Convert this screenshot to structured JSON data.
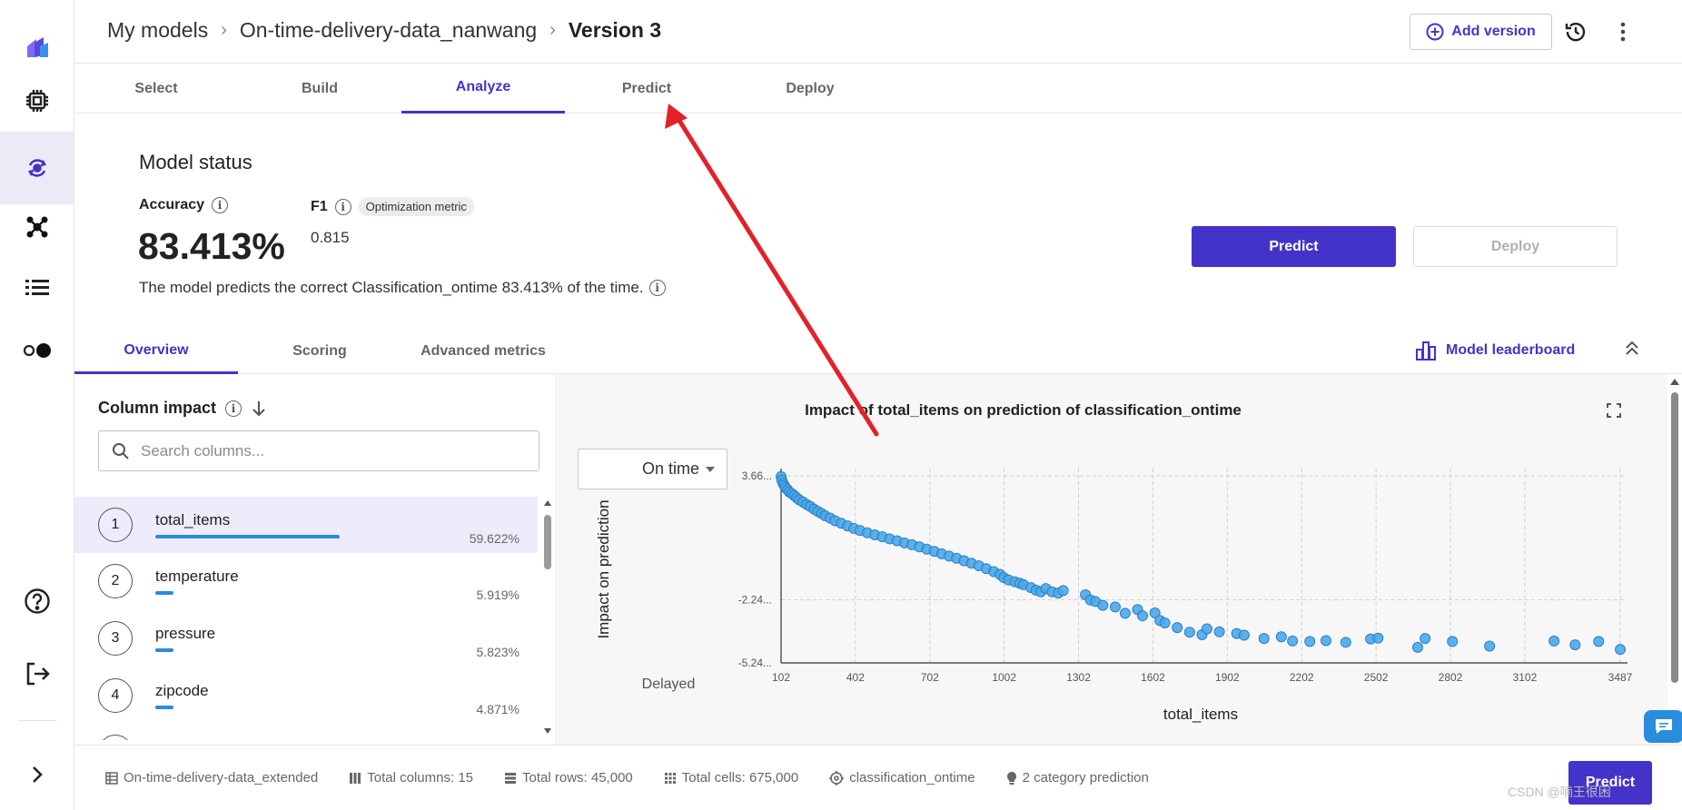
{
  "header": {
    "breadcrumbs": [
      "My models",
      "On-time-delivery-data_nanwang",
      "Version 3"
    ],
    "add_version_label": "Add version"
  },
  "main_tabs": [
    {
      "label": "Select"
    },
    {
      "label": "Build"
    },
    {
      "label": "Analyze",
      "active": true
    },
    {
      "label": "Predict"
    },
    {
      "label": "Deploy"
    }
  ],
  "status": {
    "title": "Model status",
    "accuracy_label": "Accuracy",
    "accuracy_value": "83.413%",
    "f1_label": "F1",
    "optimization_badge": "Optimization metric",
    "f1_value": "0.815",
    "description": "The model predicts the correct Classification_ontime 83.413% of the time.",
    "predict_button": "Predict",
    "deploy_button": "Deploy"
  },
  "sub_tabs": [
    {
      "label": "Overview",
      "active": true
    },
    {
      "label": "Scoring"
    },
    {
      "label": "Advanced metrics"
    }
  ],
  "leaderboard_label": "Model leaderboard",
  "column_impact": {
    "title": "Column impact",
    "search_placeholder": "Search columns...",
    "columns": [
      {
        "rank": "1",
        "name": "total_items",
        "percent": "59.622%",
        "share": 0.59622
      },
      {
        "rank": "2",
        "name": "temperature",
        "percent": "5.919%",
        "share": 0.05919
      },
      {
        "rank": "3",
        "name": "pressure",
        "percent": "5.823%",
        "share": 0.05823
      },
      {
        "rank": "4",
        "name": "zipcode",
        "percent": "4.871%",
        "share": 0.04871
      }
    ]
  },
  "chart": {
    "class_selected": "On time",
    "bottom_class_label": "Delayed"
  },
  "chart_data": {
    "type": "scatter",
    "title": "Impact of total_items on prediction of classification_ontime",
    "xlabel": "total_items",
    "ylabel": "Impact on prediction",
    "x_ticks": [
      "102",
      "402",
      "702",
      "1002",
      "1302",
      "1602",
      "1902",
      "2202",
      "2502",
      "2802",
      "3102",
      "3487"
    ],
    "y_ticks": [
      "3.66...",
      "-2.24...",
      "-5.24..."
    ],
    "xlim": [
      102,
      3487
    ],
    "ylim": [
      -5.24,
      3.66
    ],
    "grid": true,
    "point_color": "#4aa8ea",
    "points": [
      [
        102,
        3.62
      ],
      [
        105,
        3.45
      ],
      [
        110,
        3.3
      ],
      [
        115,
        3.2
      ],
      [
        120,
        3.1
      ],
      [
        128,
        3.0
      ],
      [
        135,
        2.9
      ],
      [
        145,
        2.82
      ],
      [
        155,
        2.72
      ],
      [
        165,
        2.62
      ],
      [
        175,
        2.52
      ],
      [
        190,
        2.42
      ],
      [
        205,
        2.3
      ],
      [
        220,
        2.2
      ],
      [
        235,
        2.08
      ],
      [
        250,
        1.97
      ],
      [
        265,
        1.87
      ],
      [
        280,
        1.76
      ],
      [
        300,
        1.65
      ],
      [
        320,
        1.52
      ],
      [
        345,
        1.4
      ],
      [
        370,
        1.28
      ],
      [
        395,
        1.16
      ],
      [
        420,
        1.06
      ],
      [
        450,
        0.95
      ],
      [
        480,
        0.85
      ],
      [
        510,
        0.76
      ],
      [
        540,
        0.66
      ],
      [
        570,
        0.57
      ],
      [
        600,
        0.47
      ],
      [
        630,
        0.38
      ],
      [
        660,
        0.28
      ],
      [
        690,
        0.17
      ],
      [
        720,
        0.07
      ],
      [
        750,
        -0.05
      ],
      [
        780,
        -0.16
      ],
      [
        810,
        -0.26
      ],
      [
        840,
        -0.38
      ],
      [
        870,
        -0.5
      ],
      [
        900,
        -0.62
      ],
      [
        930,
        -0.76
      ],
      [
        960,
        -0.9
      ],
      [
        985,
        -1.03
      ],
      [
        1000,
        -1.18
      ],
      [
        1020,
        -1.3
      ],
      [
        1045,
        -1.38
      ],
      [
        1065,
        -1.45
      ],
      [
        1080,
        -1.52
      ],
      [
        1110,
        -1.66
      ],
      [
        1130,
        -1.78
      ],
      [
        1150,
        -1.86
      ],
      [
        1170,
        -1.7
      ],
      [
        1195,
        -1.86
      ],
      [
        1220,
        -1.92
      ],
      [
        1240,
        -1.8
      ],
      [
        1330,
        -2.0
      ],
      [
        1350,
        -2.25
      ],
      [
        1370,
        -2.32
      ],
      [
        1400,
        -2.5
      ],
      [
        1450,
        -2.58
      ],
      [
        1490,
        -2.88
      ],
      [
        1540,
        -2.7
      ],
      [
        1560,
        -3.0
      ],
      [
        1610,
        -2.86
      ],
      [
        1630,
        -3.22
      ],
      [
        1650,
        -3.34
      ],
      [
        1700,
        -3.56
      ],
      [
        1750,
        -3.78
      ],
      [
        1800,
        -3.9
      ],
      [
        1820,
        -3.62
      ],
      [
        1870,
        -3.76
      ],
      [
        1940,
        -3.84
      ],
      [
        1970,
        -3.92
      ],
      [
        2050,
        -4.08
      ],
      [
        2120,
        -4.0
      ],
      [
        2165,
        -4.2
      ],
      [
        2235,
        -4.22
      ],
      [
        2300,
        -4.18
      ],
      [
        2380,
        -4.26
      ],
      [
        2480,
        -4.1
      ],
      [
        2510,
        -4.06
      ],
      [
        2670,
        -4.5
      ],
      [
        2700,
        -4.08
      ],
      [
        2810,
        -4.22
      ],
      [
        2960,
        -4.44
      ],
      [
        3220,
        -4.2
      ],
      [
        3305,
        -4.38
      ],
      [
        3400,
        -4.22
      ],
      [
        3487,
        -4.6
      ]
    ]
  },
  "footer": {
    "dataset": "On-time-delivery-data_extended",
    "total_columns": "Total columns: 15",
    "total_rows": "Total rows: 45,000",
    "total_cells": "Total cells: 675,000",
    "target": "classification_ontime",
    "prediction_type": "2 category prediction",
    "predict_button": "Predict"
  },
  "watermark": "CSDN @喃王很困",
  "colors": {
    "accent": "#4433c9",
    "bar": "#2a8cdc",
    "point": "#4aa8ea",
    "annotation": "#e32227"
  }
}
